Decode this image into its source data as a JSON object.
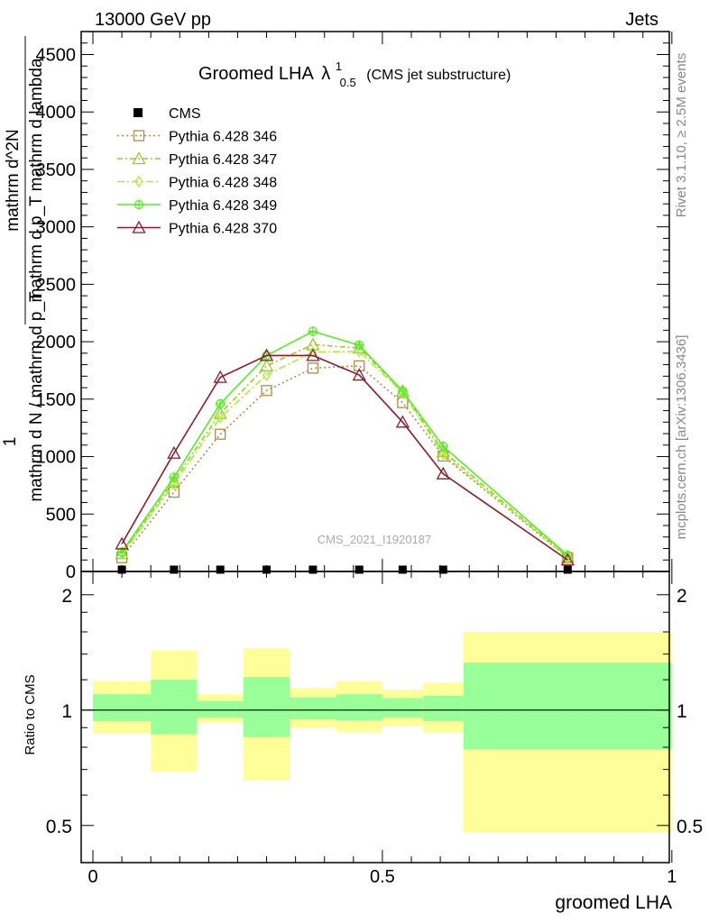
{
  "header": {
    "left": "13000 GeV pp",
    "right": "Jets"
  },
  "side_labels": {
    "rivet": "Rivet 3.1.10, ≥ 2.5M events",
    "mcplots": "mcplots.cern.ch [arXiv:1306.3436]"
  },
  "colors": {
    "cms": "#000000",
    "p346": "#b5894a",
    "p347": "#99cc22",
    "p348": "#aaee33",
    "p349": "#55ee22",
    "p370": "#8b1a2a",
    "band_outer": "#ffff99",
    "band_inner": "#99ff99"
  },
  "chart_data": [
    {
      "type": "line",
      "title_main": "Groomed LHA",
      "title_lambda": "λ",
      "title_sup": "1",
      "title_sub": "0.5",
      "title_suffix": "(CMS jet substructure)",
      "ylabel_numer_line1": "mathrm d^2N",
      "ylabel_numer_line2": "mathrm d p_T mathrm d lambda",
      "ylabel_one": "1",
      "ylabel_denom": "mathrm d N / mathrm d p_T",
      "watermark": "CMS_2021_I1920187",
      "xlim": [
        0,
        1
      ],
      "ylim": [
        0,
        4700
      ],
      "yticks": [
        0,
        500,
        1000,
        1500,
        2000,
        2500,
        3000,
        3500,
        4000,
        4500
      ],
      "ytick_labels": [
        "0",
        "500",
        "1000",
        "1500",
        "2000",
        "2500",
        "3000",
        "3500",
        "4000",
        "4500"
      ],
      "x": [
        0.05,
        0.14,
        0.22,
        0.3,
        0.38,
        0.46,
        0.535,
        0.605,
        0.82
      ],
      "cms_x": [
        0.05,
        0.14,
        0.22,
        0.3,
        0.38,
        0.46,
        0.535,
        0.605,
        0.82
      ],
      "cms_values": [
        0,
        0,
        0,
        0,
        0,
        0,
        0,
        0,
        0
      ],
      "cms_label": "CMS",
      "series": [
        {
          "name": "Pythia 6.428 346",
          "marker": "square",
          "dash": "2,3",
          "color_key": "p346",
          "values": [
            120,
            690,
            1195,
            1575,
            1770,
            1790,
            1470,
            1005,
            120
          ]
        },
        {
          "name": "Pythia 6.428 347",
          "marker": "triangle",
          "dash": "6,3,2,3",
          "color_key": "p347",
          "values": [
            155,
            790,
            1375,
            1790,
            1975,
            1945,
            1570,
            1045,
            130
          ]
        },
        {
          "name": "Pythia 6.428 348",
          "marker": "diamond",
          "dash": "8,3,2,3",
          "color_key": "p348",
          "values": [
            150,
            760,
            1340,
            1710,
            1910,
            1915,
            1555,
            1020,
            125
          ]
        },
        {
          "name": "Pythia 6.428 349",
          "marker": "circle-cross",
          "dash": "",
          "color_key": "p349",
          "values": [
            170,
            820,
            1460,
            1880,
            2090,
            1970,
            1570,
            1090,
            140
          ]
        },
        {
          "name": "Pythia 6.428 370",
          "marker": "triangle",
          "dash": "",
          "color_key": "p370",
          "values": [
            240,
            1030,
            1690,
            1880,
            1880,
            1710,
            1300,
            850,
            100
          ]
        }
      ]
    },
    {
      "type": "area",
      "ylabel": "Ratio to CMS",
      "xlabel": "groomed LHA",
      "xlim": [
        0,
        1
      ],
      "ylim": [
        0.4,
        2.3
      ],
      "log_y": true,
      "yticks": [
        0.5,
        1,
        2
      ],
      "ytick_labels": [
        "0.5",
        "1",
        "2"
      ],
      "xticks": [
        0,
        0.5,
        1
      ],
      "xtick_labels": [
        "0",
        "0.5",
        "1"
      ],
      "reference": 1,
      "bins": [
        {
          "lo": 0.0,
          "hi": 0.1,
          "outer": [
            0.87,
            1.19
          ],
          "inner": [
            0.935,
            1.1
          ]
        },
        {
          "lo": 0.1,
          "hi": 0.18,
          "outer": [
            0.69,
            1.43
          ],
          "inner": [
            0.865,
            1.2
          ]
        },
        {
          "lo": 0.18,
          "hi": 0.26,
          "outer": [
            0.925,
            1.1
          ],
          "inner": [
            0.955,
            1.055
          ]
        },
        {
          "lo": 0.26,
          "hi": 0.34,
          "outer": [
            0.655,
            1.45
          ],
          "inner": [
            0.85,
            1.22
          ]
        },
        {
          "lo": 0.34,
          "hi": 0.42,
          "outer": [
            0.9,
            1.14
          ],
          "inner": [
            0.945,
            1.08
          ]
        },
        {
          "lo": 0.42,
          "hi": 0.5,
          "outer": [
            0.875,
            1.19
          ],
          "inner": [
            0.94,
            1.1
          ]
        },
        {
          "lo": 0.5,
          "hi": 0.57,
          "outer": [
            0.91,
            1.13
          ],
          "inner": [
            0.955,
            1.075
          ]
        },
        {
          "lo": 0.57,
          "hi": 0.64,
          "outer": [
            0.875,
            1.18
          ],
          "inner": [
            0.935,
            1.09
          ]
        },
        {
          "lo": 0.64,
          "hi": 1.0,
          "outer": [
            0.48,
            1.6
          ],
          "inner": [
            0.79,
            1.33
          ]
        }
      ]
    }
  ]
}
